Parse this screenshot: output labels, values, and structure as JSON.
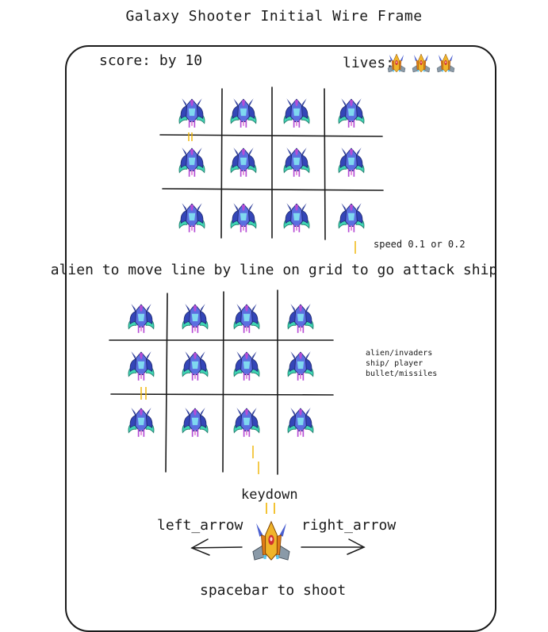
{
  "title": "Galaxy Shooter Initial Wire Frame",
  "hud": {
    "score_label": "score: by 10",
    "lives_label": "lives:",
    "lives_count": 3
  },
  "grid1": {
    "rows": 3,
    "cols": 4,
    "speed_note": "speed 0.1 or 0.2"
  },
  "caption": "alien to move line by line on grid to go attack ship",
  "grid2": {
    "rows": 3,
    "cols": 4
  },
  "legend": [
    "alien/invaders",
    "ship/ player",
    "bullet/missiles"
  ],
  "controls": {
    "keydown": "keydown",
    "left_arrow": "left_arrow",
    "right_arrow": "right_arrow",
    "shoot": "spacebar to shoot"
  },
  "colors": {
    "bullet": "#f0b400",
    "alien_body": "#4a5fd0",
    "alien_accent": "#b64dd6",
    "alien_claw": "#3fd6b4",
    "player_body": "#e07b18"
  }
}
